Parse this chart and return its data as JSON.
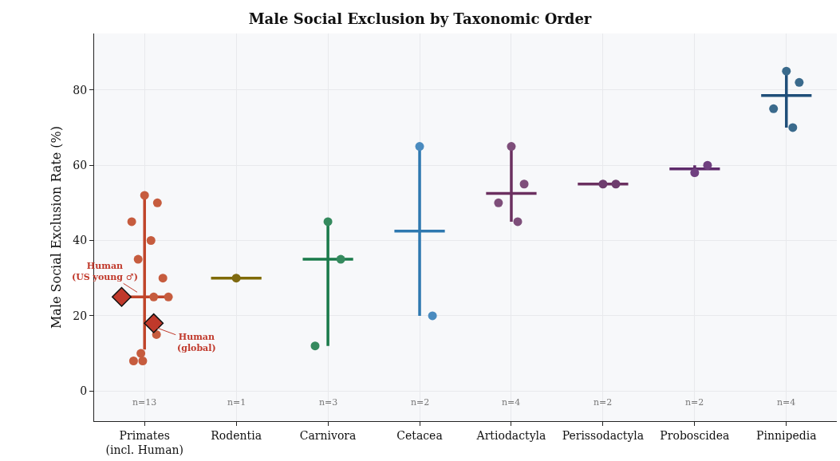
{
  "chart_data": {
    "type": "box",
    "title": "Male Social Exclusion by Taxonomic Order",
    "ylabel": "Male Social Exclusion Rate (%)",
    "categories": [
      "Primates\n(incl. Human)",
      "Rodentia",
      "Carnivora",
      "Cetacea",
      "Artiodactyla",
      "Perissodactyla",
      "Proboscidea",
      "Pinnipedia"
    ],
    "boxes": [
      {
        "low": 11,
        "q1": 25,
        "median": 25,
        "q3": 25,
        "high": 52
      },
      {
        "low": 30,
        "q1": 30,
        "median": 30,
        "q3": 30,
        "high": 30
      },
      {
        "low": 12,
        "q1": 35,
        "median": 35,
        "q3": 35,
        "high": 45
      },
      {
        "low": 20,
        "q1": 42.5,
        "median": 42.5,
        "q3": 42.5,
        "high": 65
      },
      {
        "low": 45,
        "q1": 52.5,
        "median": 52.5,
        "q3": 52.5,
        "high": 65
      },
      {
        "low": 55,
        "q1": 55,
        "median": 55,
        "q3": 55,
        "high": 55
      },
      {
        "low": 58,
        "q1": 59,
        "median": 59,
        "q3": 59,
        "high": 60
      },
      {
        "low": 70,
        "q1": 78.5,
        "median": 78.5,
        "q3": 78.5,
        "high": 85
      }
    ],
    "colors": [
      "#c0442a",
      "#7f6a00",
      "#1a7a4a",
      "#2e78b0",
      "#6b3060",
      "#6b3060",
      "#5e2a6a",
      "#1f4e79"
    ],
    "series": [
      {
        "type": "scatter",
        "marker": "circle",
        "x": [
          "Primates\n(incl. Human)",
          "Primates\n(incl. Human)",
          "Primates\n(incl. Human)",
          "Primates\n(incl. Human)",
          "Primates\n(incl. Human)",
          "Primates\n(incl. Human)",
          "Primates\n(incl. Human)",
          "Primates\n(incl. Human)",
          "Primates\n(incl. Human)",
          "Primates\n(incl. Human)",
          "Primates\n(incl. Human)",
          "Primates\n(incl. Human)",
          "Rodentia",
          "Carnivora",
          "Carnivora",
          "Carnivora",
          "Cetacea",
          "Cetacea",
          "Artiodactyla",
          "Artiodactyla",
          "Artiodactyla",
          "Artiodactyla",
          "Perissodactyla",
          "Perissodactyla",
          "Proboscidea",
          "Proboscidea",
          "Pinnipedia",
          "Pinnipedia",
          "Pinnipedia",
          "Pinnipedia"
        ],
        "values": [
          52,
          50,
          45,
          40,
          35,
          30,
          25,
          25,
          15,
          10,
          8,
          8,
          30,
          45,
          35,
          12,
          65,
          20,
          65,
          55,
          50,
          45,
          55,
          55,
          58,
          60,
          85,
          82,
          75,
          70
        ],
        "colors": [
          "#c65c3e",
          "#c65c3e",
          "#c65c3e",
          "#c65c3e",
          "#c65c3e",
          "#c65c3e",
          "#c65c3e",
          "#c65c3e",
          "#c65c3e",
          "#c65c3e",
          "#c65c3e",
          "#c65c3e",
          "#7f6a10",
          "#358a5e",
          "#358a5e",
          "#358a5e",
          "#4a8bbf",
          "#4a8bbf",
          "#7e4e7a",
          "#7e4e7a",
          "#7e4e7a",
          "#7e4e7a",
          "#6e3d6e",
          "#6e3d6e",
          "#704080",
          "#704080",
          "#3a6a8c",
          "#3a6a8c",
          "#3a6a8c",
          "#3a6a8c"
        ]
      },
      {
        "type": "scatter",
        "marker": "diamond",
        "color": "#c0392b",
        "x": [
          "Primates\n(incl. Human)",
          "Primates\n(incl. Human)"
        ],
        "values": [
          25,
          18
        ]
      }
    ],
    "annotations": [
      {
        "text": "Human\n(US young ♂)",
        "x": "Primates\n(incl. Human)",
        "y": 25
      },
      {
        "text": "Human\n(global)",
        "x": "Primates\n(incl. Human)",
        "y": 18
      },
      "n=13",
      "n=1",
      "n=3",
      "n=2",
      "n=4",
      "n=2",
      "n=2",
      "n=4"
    ],
    "ylim": [
      -8,
      95
    ],
    "yticks": [
      0,
      20,
      40,
      60,
      80
    ],
    "grid": true
  }
}
